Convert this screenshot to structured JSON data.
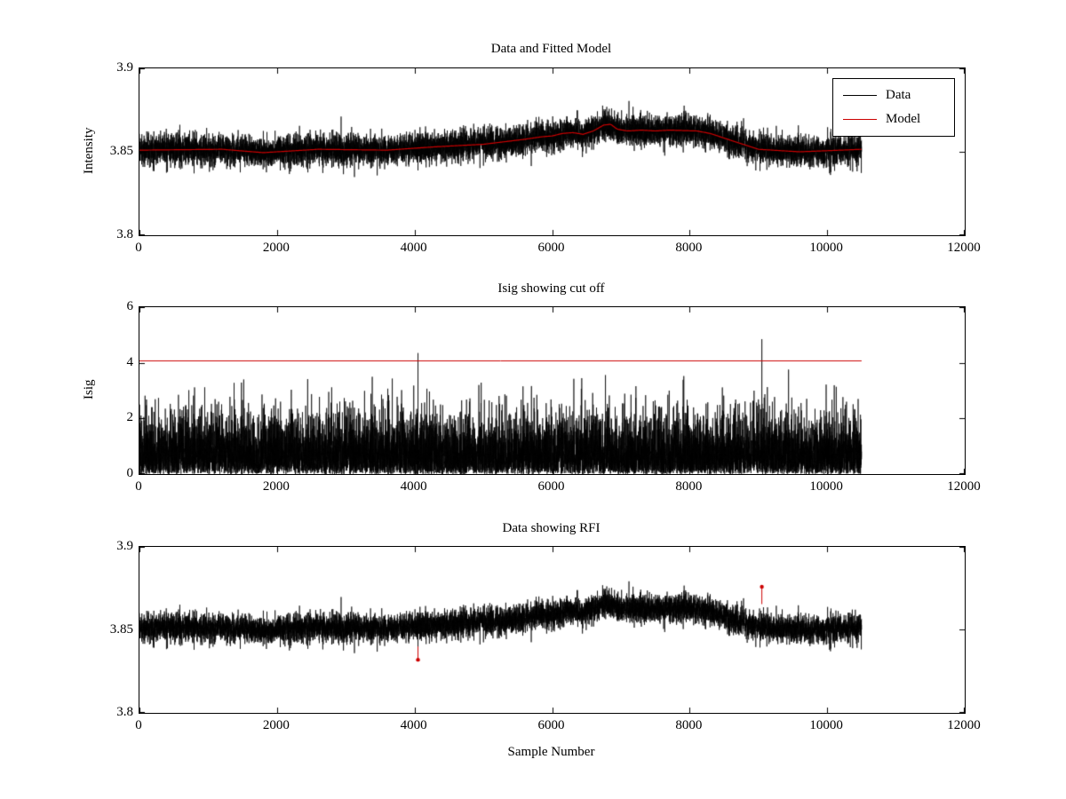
{
  "figure": {
    "background": "#ffffff",
    "axis_color": "#000000",
    "accent_red": "#cc0000"
  },
  "chart_data": [
    {
      "id": "data-and-fitted-model",
      "type": "line",
      "title": "Data and Fitted Model",
      "xlabel": "",
      "ylabel": "Intensity",
      "xlim": [
        0,
        12000
      ],
      "ylim": [
        3.8,
        3.9
      ],
      "xticks": [
        0,
        2000,
        4000,
        6000,
        8000,
        10000,
        12000
      ],
      "yticks": [
        3.8,
        3.85,
        3.9
      ],
      "grid": false,
      "x_data_end": 10500,
      "legend": {
        "position": "northeast",
        "entries": [
          {
            "label": "Data",
            "color": "#000000"
          },
          {
            "label": "Model",
            "color": "#cc0000"
          }
        ]
      },
      "series": [
        {
          "name": "Data",
          "color": "#000000",
          "kind": "noisy-line",
          "n_samples": 10500,
          "noise_std": 0.0045,
          "seed": 42,
          "trend": [
            [
              0,
              3.851
            ],
            [
              1200,
              3.8515
            ],
            [
              1800,
              3.8495
            ],
            [
              2600,
              3.8515
            ],
            [
              3600,
              3.851
            ],
            [
              4300,
              3.853
            ],
            [
              5000,
              3.8545
            ],
            [
              5600,
              3.8575
            ],
            [
              5850,
              3.859
            ],
            [
              6000,
              3.8595
            ],
            [
              6150,
              3.861
            ],
            [
              6300,
              3.8615
            ],
            [
              6450,
              3.8605
            ],
            [
              6600,
              3.8625
            ],
            [
              6750,
              3.866
            ],
            [
              6850,
              3.8665
            ],
            [
              6950,
              3.8635
            ],
            [
              7100,
              3.8625
            ],
            [
              7300,
              3.863
            ],
            [
              7500,
              3.8625
            ],
            [
              7700,
              3.863
            ],
            [
              8100,
              3.8625
            ],
            [
              8300,
              3.861
            ],
            [
              8700,
              3.8555
            ],
            [
              9000,
              3.8515
            ],
            [
              9600,
              3.85
            ],
            [
              10500,
              3.8515
            ]
          ]
        },
        {
          "name": "Model",
          "color": "#cc0000",
          "kind": "trend-line",
          "uses_trend_of": "Data"
        }
      ]
    },
    {
      "id": "isig-cutoff",
      "type": "line",
      "title": "Isig showing cut off",
      "xlabel": "",
      "ylabel": "Isig",
      "xlim": [
        0,
        12000
      ],
      "ylim": [
        0,
        6
      ],
      "xticks": [
        0,
        2000,
        4000,
        6000,
        8000,
        10000,
        12000
      ],
      "yticks": [
        0,
        2,
        4,
        6
      ],
      "grid": false,
      "x_data_end": 10500,
      "cutoff_line": {
        "y": 4.08,
        "color": "#cc0000",
        "x_start": 0,
        "x_end": 10500
      },
      "series": [
        {
          "name": "Isig",
          "color": "#000000",
          "kind": "abs-noise",
          "n_samples": 10500,
          "scale": 1.0,
          "seed": 7,
          "spikes": [
            {
              "x": 4050,
              "y": 4.35
            },
            {
              "x": 9050,
              "y": 4.85
            }
          ]
        }
      ]
    },
    {
      "id": "data-showing-rfi",
      "type": "line",
      "title": "Data showing RFI",
      "xlabel": "Sample Number",
      "ylabel": "",
      "xlim": [
        0,
        12000
      ],
      "ylim": [
        3.8,
        3.9
      ],
      "xticks": [
        0,
        2000,
        4000,
        6000,
        8000,
        10000,
        12000
      ],
      "yticks": [
        3.8,
        3.85,
        3.9
      ],
      "grid": false,
      "x_data_end": 10500,
      "series": [
        {
          "name": "Data",
          "color": "#000000",
          "kind": "noisy-line",
          "n_samples": 10500,
          "noise_std": 0.0042,
          "seed": 42,
          "trend": [
            [
              0,
              3.851
            ],
            [
              1200,
              3.8515
            ],
            [
              1800,
              3.8495
            ],
            [
              2600,
              3.8515
            ],
            [
              3600,
              3.851
            ],
            [
              4300,
              3.853
            ],
            [
              5000,
              3.8545
            ],
            [
              5600,
              3.8575
            ],
            [
              5850,
              3.859
            ],
            [
              6000,
              3.8595
            ],
            [
              6150,
              3.861
            ],
            [
              6300,
              3.8615
            ],
            [
              6450,
              3.8605
            ],
            [
              6600,
              3.8625
            ],
            [
              6750,
              3.866
            ],
            [
              6850,
              3.8665
            ],
            [
              6950,
              3.8635
            ],
            [
              7100,
              3.8625
            ],
            [
              7300,
              3.863
            ],
            [
              7500,
              3.8625
            ],
            [
              7700,
              3.863
            ],
            [
              8100,
              3.8625
            ],
            [
              8300,
              3.861
            ],
            [
              8700,
              3.8555
            ],
            [
              9000,
              3.8515
            ],
            [
              9600,
              3.85
            ],
            [
              10500,
              3.8515
            ]
          ]
        }
      ],
      "rfi_markers": {
        "color": "#cc0000",
        "points": [
          {
            "x": 4050,
            "y": 3.832,
            "stem_from": 3.84
          },
          {
            "x": 9050,
            "y": 3.876,
            "stem_from": 3.8655
          }
        ]
      }
    }
  ]
}
